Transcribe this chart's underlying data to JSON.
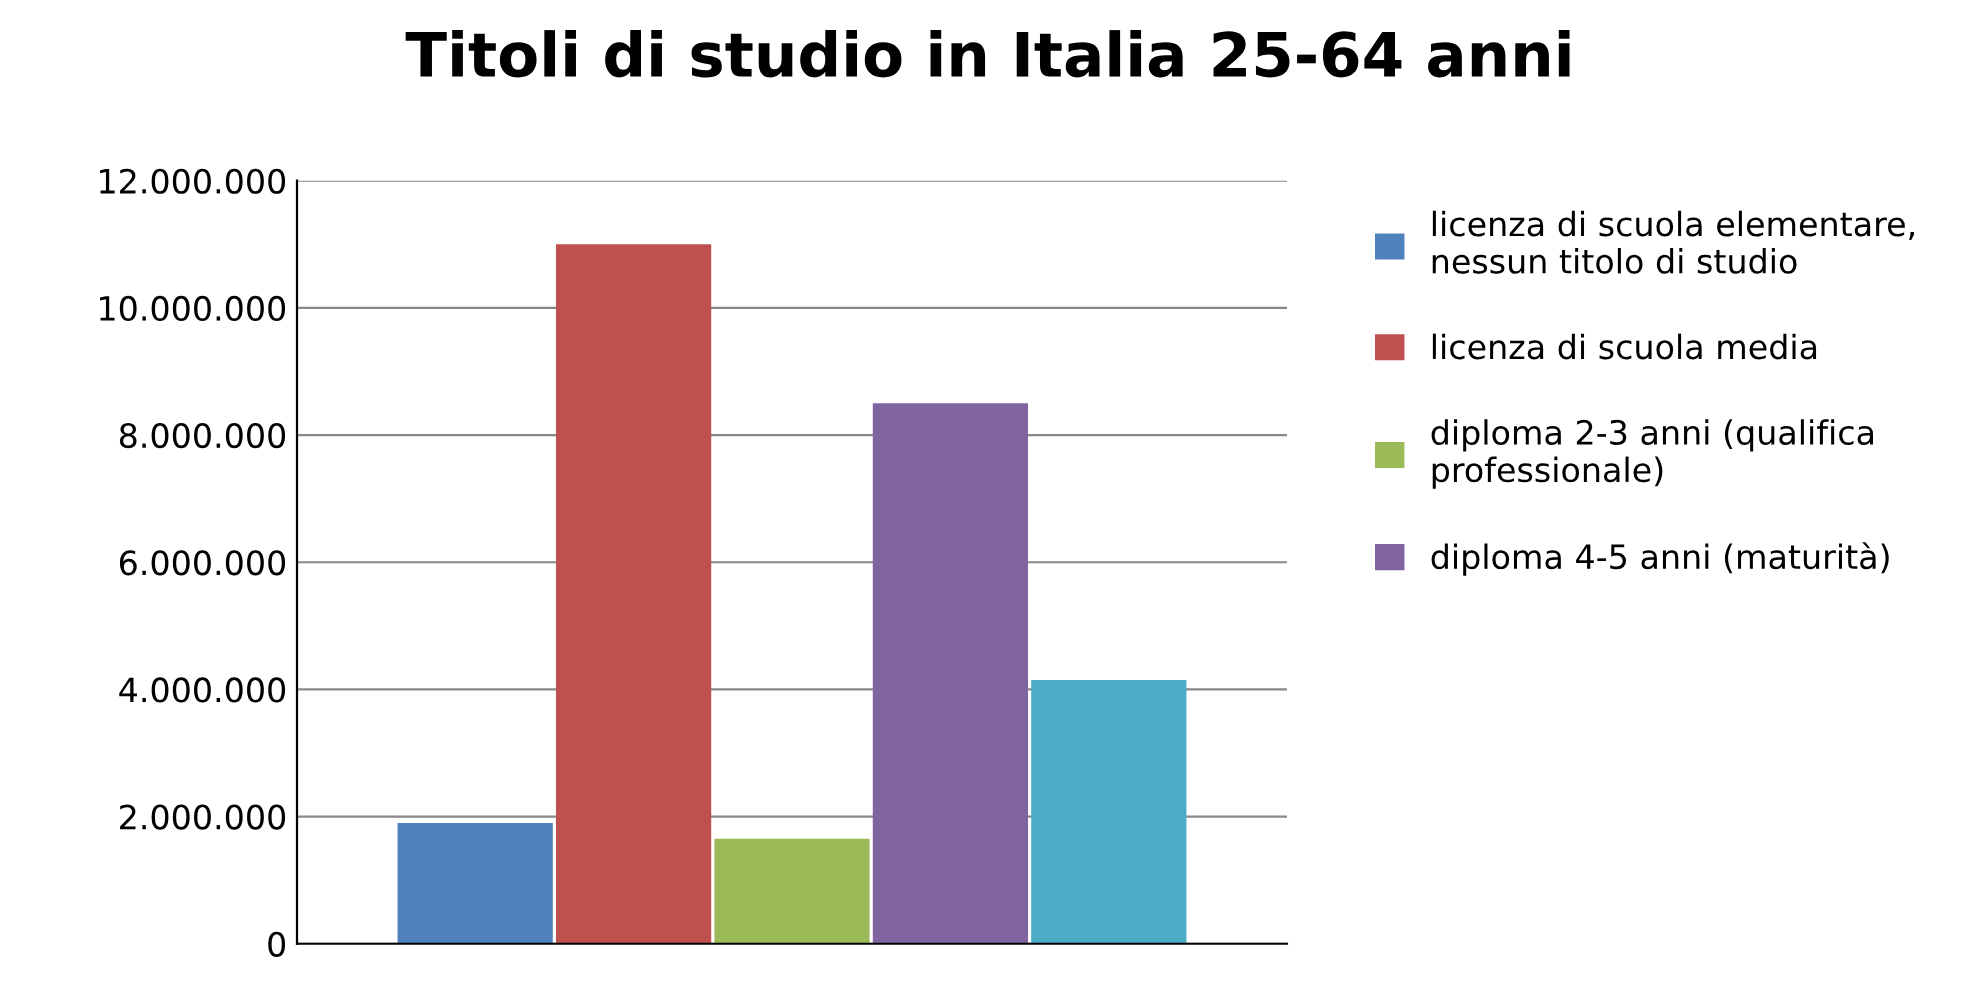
{
  "chart_data": {
    "type": "bar",
    "title": "Titoli di studio in Italia 25-64 anni",
    "categories": [
      null
    ],
    "series": [
      {
        "name": "licenza di scuola elementare, nessun titolo di studio",
        "color": "#4f81bd",
        "values": [
          1900000
        ]
      },
      {
        "name": "licenza di scuola media",
        "color": "#c0504d",
        "values": [
          11000000
        ]
      },
      {
        "name": "diploma 2-3 anni (qualifica professionale)",
        "color": "#9bbb59",
        "values": [
          1650000
        ]
      },
      {
        "name": "diploma 4-5 anni (maturità)",
        "color": "#8064a2",
        "values": [
          8500000
        ]
      },
      {
        "color": "#4bacc6",
        "values": [
          4150000
        ]
      }
    ],
    "ylim": [
      0,
      12000000
    ],
    "yticks": [
      {
        "value": 0,
        "label": "0"
      },
      {
        "value": 2000000,
        "label": "2.000.000"
      },
      {
        "value": 4000000,
        "label": "4.000.000"
      },
      {
        "value": 6000000,
        "label": "6.000.000"
      },
      {
        "value": 8000000,
        "label": "8.000.000"
      },
      {
        "value": 10000000,
        "label": "10.000.000"
      },
      {
        "value": 12000000,
        "label": "12.000.000"
      }
    ],
    "grid": "y",
    "legend": "right"
  }
}
